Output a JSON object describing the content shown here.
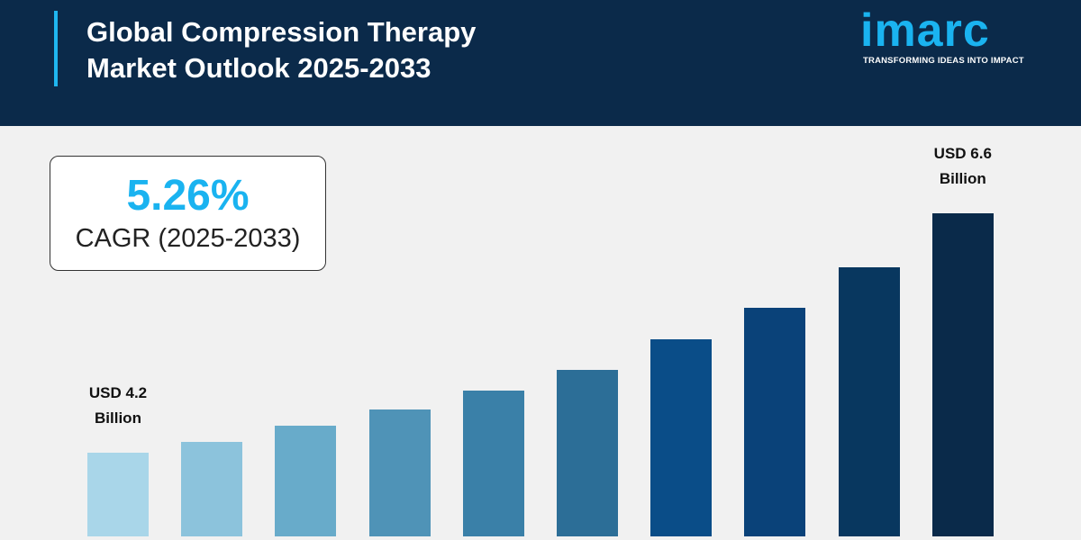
{
  "header": {
    "title": "Global Compression Therapy Market Outlook 2025-2033"
  },
  "logo": {
    "name": "imarc",
    "tagline": "TRANSFORMING IDEAS INTO IMPACT"
  },
  "chart_data": {
    "type": "bar",
    "cagr_value": "5.26%",
    "cagr_label": "CAGR (2025-2033)",
    "values": [
      4.2,
      4.31,
      4.47,
      4.63,
      4.82,
      5.03,
      5.34,
      5.65,
      6.06,
      6.6
    ],
    "value_labels": [
      "USD 4.2 Billion",
      null,
      null,
      null,
      null,
      null,
      null,
      null,
      null,
      "USD 6.6 Billion"
    ],
    "colors": [
      "#a9d6e9",
      "#8cc3dc",
      "#68abca",
      "#4f93b7",
      "#3a80a8",
      "#2c6e97",
      "#0a4d88",
      "#0a4279",
      "#08375f",
      "#0a2a4a"
    ]
  }
}
